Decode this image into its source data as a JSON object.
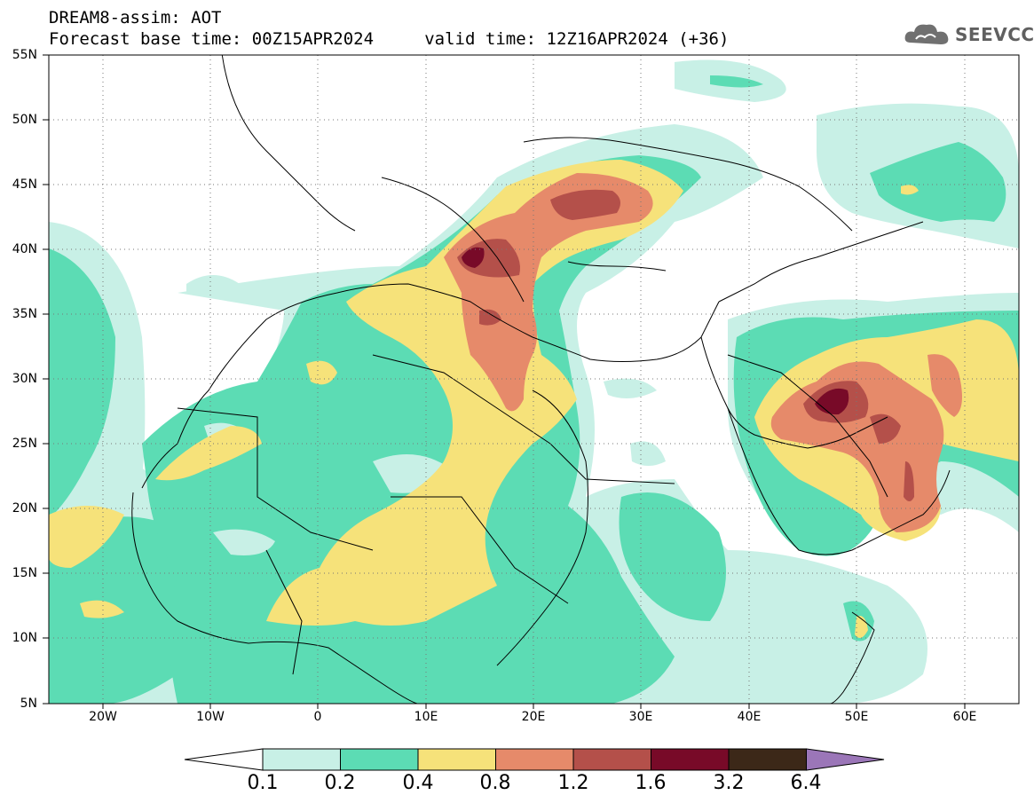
{
  "title": {
    "line1": "DREAM8-assim: AOT",
    "line2": "Forecast base time: 00Z15APR2024     valid time: 12Z16APR2024 (+36)"
  },
  "logo": {
    "text": "SEEVCCC",
    "icon": "cloud-icon"
  },
  "map": {
    "lat_labels": [
      "55N",
      "50N",
      "45N",
      "40N",
      "35N",
      "30N",
      "25N",
      "20N",
      "15N",
      "10N",
      "5N"
    ],
    "lon_labels": [
      "20W",
      "10W",
      "0",
      "10E",
      "20E",
      "30E",
      "40E",
      "50E",
      "60E"
    ],
    "lat_range": [
      5,
      55
    ],
    "lon_range": [
      -25,
      65
    ],
    "grid": "dotted"
  },
  "colorbar": {
    "labels": [
      "0.1",
      "0.2",
      "0.4",
      "0.8",
      "1.2",
      "1.6",
      "3.2",
      "6.4"
    ],
    "colors": [
      "#c8f0e6",
      "#5cdcb4",
      "#f6e27a",
      "#e68a6a",
      "#b4504a",
      "#780a28",
      "#3c2818",
      "#9b76b8"
    ],
    "under_color": "#ffffff"
  },
  "colors": {
    "aot_0_1": "#c8f0e6",
    "aot_0_2": "#5cdcb4",
    "aot_0_4": "#f6e27a",
    "aot_0_8": "#e68a6a",
    "aot_1_2": "#b4504a",
    "aot_1_6": "#780a28",
    "aot_3_2": "#3c2818",
    "aot_6_4": "#9b76b8"
  }
}
